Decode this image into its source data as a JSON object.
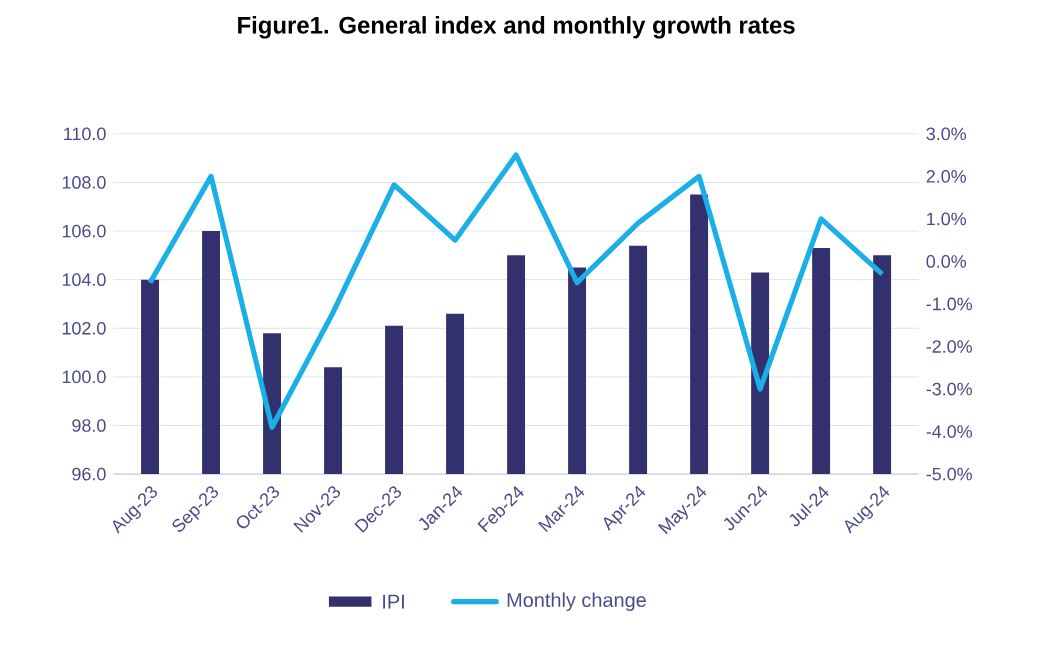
{
  "chart_data": {
    "type": "bar",
    "title": "Figure1. General index and monthly growth rates",
    "categories": [
      "Aug-23",
      "Sep-23",
      "Oct-23",
      "Nov-23",
      "Dec-23",
      "Jan-24",
      "Feb-24",
      "Mar-24",
      "Apr-24",
      "May-24",
      "Jun-24",
      "Jul-24",
      "Aug-24"
    ],
    "series": [
      {
        "name": "IPI",
        "type": "bar",
        "color": "#33306e",
        "values": [
          104.0,
          106.0,
          101.8,
          100.4,
          102.1,
          102.6,
          105.0,
          104.5,
          105.4,
          107.5,
          104.3,
          105.3,
          105.0
        ]
      },
      {
        "name": "Monthly change",
        "type": "line",
        "axis": "y2",
        "color": "#1aafe6",
        "values": [
          -0.5,
          2.0,
          -3.9,
          -1.2,
          1.8,
          0.5,
          2.5,
          -0.5,
          0.9,
          2.0,
          -3.0,
          1.0,
          -0.3
        ]
      }
    ],
    "ylim": [
      96,
      110
    ],
    "yticks": [
      {
        "value": 96,
        "label": "96.0"
      },
      {
        "value": 98,
        "label": "98.0"
      },
      {
        "value": 100,
        "label": "100.0"
      },
      {
        "value": 102,
        "label": "102.0"
      },
      {
        "value": 104,
        "label": "104.0"
      },
      {
        "value": 106,
        "label": "106.0"
      },
      {
        "value": 108,
        "label": "108.0"
      },
      {
        "value": 110,
        "label": "110.0"
      }
    ],
    "y2lim": [
      -5,
      3
    ],
    "y2ticks": [
      {
        "value": -5,
        "label": "-5.0%"
      },
      {
        "value": -4,
        "label": "-4.0%"
      },
      {
        "value": -3,
        "label": "-3.0%"
      },
      {
        "value": -2,
        "label": "-2.0%"
      },
      {
        "value": -1,
        "label": "-1.0%"
      },
      {
        "value": 0,
        "label": "0.0%"
      },
      {
        "value": 1,
        "label": "1.0%"
      },
      {
        "value": 2,
        "label": "2.0%"
      },
      {
        "value": 3,
        "label": "3.0%"
      }
    ],
    "grid": "y",
    "legend": "bottom",
    "marker": "none",
    "line_style": "solid"
  }
}
